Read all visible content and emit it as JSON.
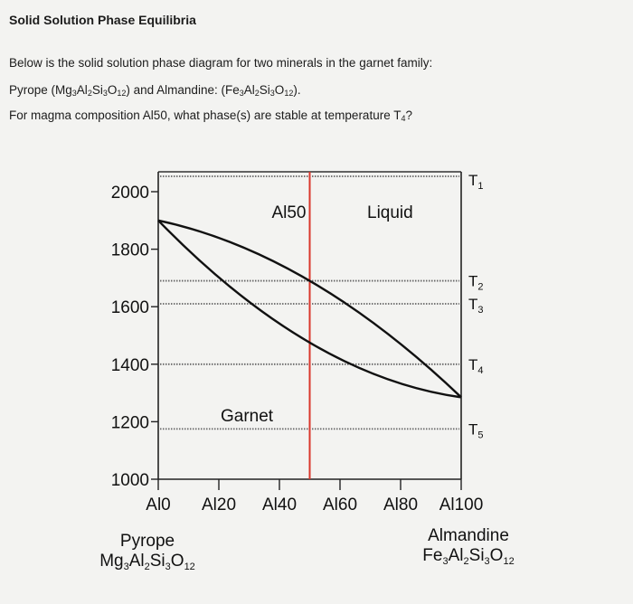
{
  "question": {
    "title": "Solid Solution Phase Equilibria",
    "intro": "Below is the solid solution phase diagram for two minerals in the garnet family:",
    "line2_pre": "Pyrope (Mg",
    "line2_s1": "3",
    "line2_m1": "Al",
    "line2_s2": "2",
    "line2_m2": "Si",
    "line2_s3": "3",
    "line2_m3": "O",
    "line2_s4": "12",
    "line2_m4": ") and Almandine: (Fe",
    "line2_s5": "3",
    "line2_m5": "Al",
    "line2_s6": "2",
    "line2_m6": "Si",
    "line2_s7": "3",
    "line2_m7": "O",
    "line2_s8": "12",
    "line2_end": ").",
    "line3_pre": "For magma composition Al50, what phase(s) are stable at temperature T",
    "line3_sub": "4",
    "line3_end": "?"
  },
  "chart_data": {
    "type": "line",
    "x_ticks": [
      0,
      20,
      40,
      60,
      80,
      100
    ],
    "x_tick_labels": [
      "Al0",
      "Al20",
      "Al40",
      "Al60",
      "Al80",
      "Al100"
    ],
    "y_ticks": [
      1000,
      1200,
      1400,
      1600,
      1800,
      2000
    ],
    "y_tick_labels": [
      "1000",
      "1200",
      "1400",
      "1600",
      "1800",
      "2000"
    ],
    "xlim": [
      0,
      100
    ],
    "ylim": [
      1000,
      2050
    ],
    "liquidus": {
      "x": [
        0,
        50,
        100
      ],
      "y": [
        1900,
        1690,
        1285
      ]
    },
    "solidus": {
      "x": [
        0,
        50,
        100
      ],
      "y": [
        1900,
        1475,
        1285
      ]
    },
    "composition_line": {
      "x": 50,
      "label": "Al50",
      "color": "#d9362b"
    },
    "isotherms": [
      {
        "name": "T",
        "sub": "1",
        "y": 2005
      },
      {
        "name": "T",
        "sub": "2",
        "y": 1690
      },
      {
        "name": "T",
        "sub": "3",
        "y": 1610
      },
      {
        "name": "T",
        "sub": "4",
        "y": 1400
      },
      {
        "name": "T",
        "sub": "5",
        "y": 1175
      }
    ],
    "regions": {
      "liquid": "Liquid",
      "solid": "Garnet"
    },
    "endmembers": {
      "left_name": "Pyrope",
      "left_formula": [
        "Mg",
        "3",
        "Al",
        "2",
        "Si",
        "3",
        "O",
        "12"
      ],
      "right_name": "Almandine",
      "right_formula": [
        "Fe",
        "3",
        "Al",
        "2",
        "Si",
        "3",
        "O",
        "12"
      ]
    }
  }
}
